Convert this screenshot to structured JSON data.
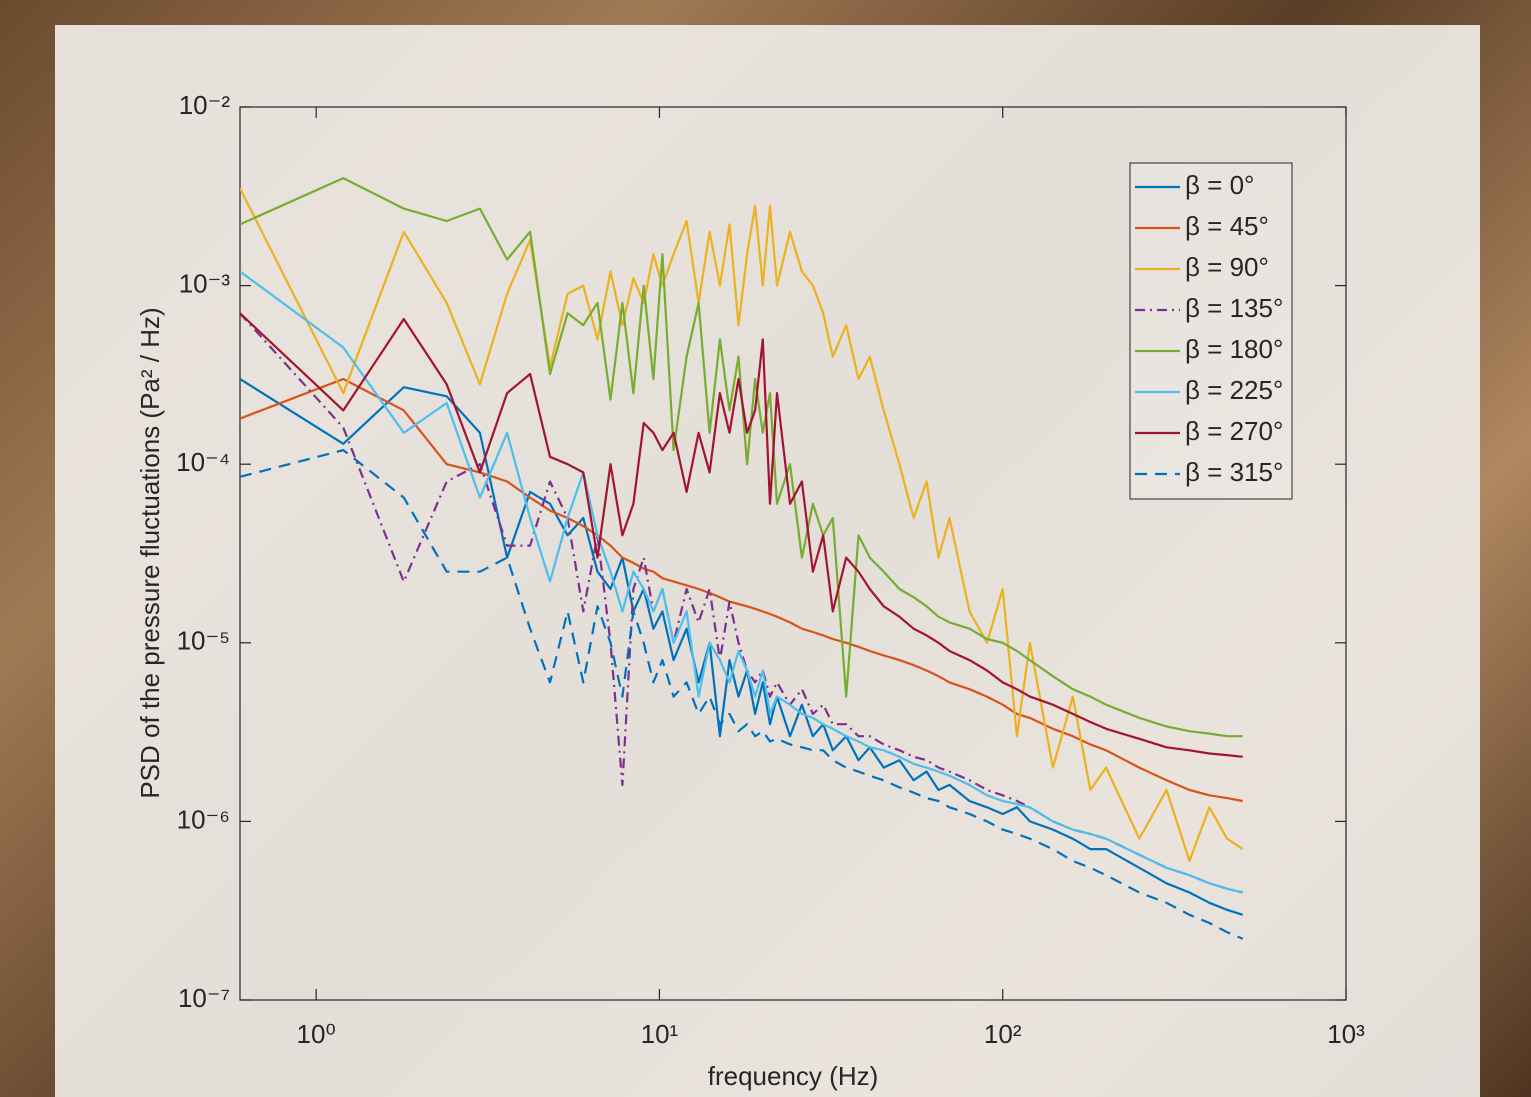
{
  "chart_data": {
    "type": "line",
    "xlabel": "frequency (Hz)",
    "ylabel": "PSD of the pressure fluctuations (Pa² / Hz)",
    "xscale": "log",
    "yscale": "log",
    "xlim": [
      0.6,
      1000
    ],
    "ylim": [
      1e-07,
      0.01
    ],
    "xticks": [
      {
        "value": 1,
        "label": "10⁰"
      },
      {
        "value": 10,
        "label": "10¹"
      },
      {
        "value": 100,
        "label": "10²"
      },
      {
        "value": 1000,
        "label": "10³"
      }
    ],
    "yticks": [
      {
        "value": 1e-07,
        "label": "10⁻⁷"
      },
      {
        "value": 1e-06,
        "label": "10⁻⁶"
      },
      {
        "value": 1e-05,
        "label": "10⁻⁵"
      },
      {
        "value": 0.0001,
        "label": "10⁻⁴"
      },
      {
        "value": 0.001,
        "label": "10⁻³"
      },
      {
        "value": 0.01,
        "label": "10⁻²"
      }
    ],
    "legend": "northeast",
    "x": [
      0.6,
      1.2,
      1.8,
      2.4,
      3.0,
      3.6,
      4.2,
      4.8,
      5.4,
      6.0,
      6.6,
      7.2,
      7.8,
      8.4,
      9.0,
      9.6,
      10.2,
      11,
      12,
      13,
      14,
      15,
      16,
      17,
      18,
      19,
      20,
      21,
      22,
      24,
      26,
      28,
      30,
      32,
      35,
      38,
      41,
      45,
      50,
      55,
      60,
      65,
      70,
      80,
      90,
      100,
      110,
      120,
      140,
      160,
      180,
      200,
      250,
      300,
      350,
      400,
      450,
      500
    ],
    "series": [
      {
        "name": "β = 0°",
        "color": "#0072bd",
        "line_style": "solid",
        "values": [
          0.0003,
          0.00013,
          0.00027,
          0.00024,
          0.00015,
          3e-05,
          7e-05,
          6e-05,
          4e-05,
          5e-05,
          2.5e-05,
          2e-05,
          3e-05,
          1.5e-05,
          2e-05,
          1.2e-05,
          1.5e-05,
          8e-06,
          1.2e-05,
          6e-06,
          1e-05,
          3e-06,
          8e-06,
          5e-06,
          7e-06,
          4e-06,
          6e-06,
          3.5e-06,
          5e-06,
          3e-06,
          4.5e-06,
          3e-06,
          3.5e-06,
          2.5e-06,
          3e-06,
          2.2e-06,
          2.6e-06,
          2e-06,
          2.2e-06,
          1.7e-06,
          1.9e-06,
          1.5e-06,
          1.6e-06,
          1.3e-06,
          1.2e-06,
          1.1e-06,
          1.2e-06,
          1e-06,
          9e-07,
          8e-07,
          7e-07,
          7e-07,
          5.5e-07,
          4.5e-07,
          4e-07,
          3.5e-07,
          3.2e-07,
          3e-07
        ]
      },
      {
        "name": "β = 45°",
        "color": "#d95319",
        "line_style": "solid",
        "values": [
          0.00018,
          0.0003,
          0.0002,
          0.0001,
          9e-05,
          8e-05,
          6.5e-05,
          5.5e-05,
          5e-05,
          4.5e-05,
          4e-05,
          3.5e-05,
          3e-05,
          2.8e-05,
          2.6e-05,
          2.5e-05,
          2.3e-05,
          2.2e-05,
          2.1e-05,
          2e-05,
          1.9e-05,
          1.8e-05,
          1.7e-05,
          1.65e-05,
          1.6e-05,
          1.55e-05,
          1.5e-05,
          1.45e-05,
          1.4e-05,
          1.3e-05,
          1.2e-05,
          1.15e-05,
          1.1e-05,
          1.05e-05,
          1e-05,
          9.5e-06,
          9e-06,
          8.5e-06,
          8e-06,
          7.5e-06,
          7e-06,
          6.5e-06,
          6e-06,
          5.5e-06,
          5e-06,
          4.5e-06,
          4e-06,
          3.8e-06,
          3.3e-06,
          3e-06,
          2.7e-06,
          2.5e-06,
          2e-06,
          1.7e-06,
          1.5e-06,
          1.4e-06,
          1.35e-06,
          1.3e-06
        ]
      },
      {
        "name": "β = 90°",
        "color": "#edb120",
        "line_style": "solid",
        "values": [
          0.0035,
          0.00025,
          0.002,
          0.0008,
          0.00028,
          0.0009,
          0.0018,
          0.00035,
          0.0009,
          0.001,
          0.0005,
          0.0012,
          0.0006,
          0.0011,
          0.0008,
          0.0015,
          0.001,
          0.0015,
          0.0023,
          0.0008,
          0.002,
          0.001,
          0.0022,
          0.0006,
          0.0015,
          0.0028,
          0.001,
          0.0028,
          0.001,
          0.002,
          0.0012,
          0.001,
          0.0007,
          0.0004,
          0.0006,
          0.0003,
          0.0004,
          0.0002,
          0.0001,
          5e-05,
          8e-05,
          3e-05,
          5e-05,
          1.5e-05,
          1e-05,
          2e-05,
          3e-06,
          1e-05,
          2e-06,
          5e-06,
          1.5e-06,
          2e-06,
          8e-07,
          1.5e-06,
          6e-07,
          1.2e-06,
          8e-07,
          7e-07
        ]
      },
      {
        "name": "β = 135°",
        "color": "#7e2f8e",
        "line_style": "dashdot",
        "values": [
          0.0007,
          0.00016,
          2.2e-05,
          8e-05,
          0.0001,
          3.5e-05,
          3.5e-05,
          8e-05,
          5e-05,
          1.5e-05,
          4e-05,
          1e-05,
          1.6e-06,
          2e-05,
          3e-05,
          1.5e-05,
          2e-05,
          1e-05,
          2e-05,
          1.3e-05,
          2e-05,
          8e-06,
          1.7e-05,
          1e-05,
          7e-06,
          6e-06,
          7e-06,
          5e-06,
          6e-06,
          4.5e-06,
          5.5e-06,
          4e-06,
          4.5e-06,
          3.5e-06,
          3.5e-06,
          3e-06,
          3e-06,
          2.7e-06,
          2.5e-06,
          2.3e-06,
          2.2e-06,
          2e-06,
          1.9e-06,
          1.7e-06,
          1.5e-06,
          1.4e-06,
          1.3e-06,
          1.2e-06,
          1e-06,
          9e-07,
          8.5e-07,
          8e-07,
          6.5e-07,
          5.5e-07,
          5e-07,
          4.5e-07,
          4.2e-07,
          4e-07
        ]
      },
      {
        "name": "β = 180°",
        "color": "#77ac30",
        "line_style": "solid",
        "values": [
          0.0022,
          0.004,
          0.0027,
          0.0023,
          0.0027,
          0.0014,
          0.002,
          0.00032,
          0.0007,
          0.0006,
          0.0008,
          0.00023,
          0.0008,
          0.00025,
          0.001,
          0.0003,
          0.0015,
          0.00012,
          0.0004,
          0.0008,
          0.00015,
          0.0005,
          0.0002,
          0.0004,
          0.0001,
          0.0003,
          0.00015,
          0.00025,
          6e-05,
          0.0001,
          3e-05,
          6e-05,
          4e-05,
          5e-05,
          5e-06,
          4e-05,
          3e-05,
          2.5e-05,
          2e-05,
          1.8e-05,
          1.6e-05,
          1.4e-05,
          1.3e-05,
          1.2e-05,
          1.05e-05,
          1e-05,
          9e-06,
          8e-06,
          6.5e-06,
          5.5e-06,
          5e-06,
          4.5e-06,
          3.8e-06,
          3.4e-06,
          3.2e-06,
          3.1e-06,
          3e-06,
          3e-06
        ]
      },
      {
        "name": "β = 225°",
        "color": "#4dbeee",
        "line_style": "solid",
        "values": [
          0.0012,
          0.00045,
          0.00015,
          0.00022,
          6.5e-05,
          0.00015,
          5e-05,
          2.2e-05,
          5e-05,
          9e-05,
          4e-05,
          2.5e-05,
          1.5e-05,
          2.5e-05,
          2e-05,
          1.5e-05,
          2e-05,
          1e-05,
          1.5e-05,
          5e-06,
          1e-05,
          8e-06,
          6e-06,
          9e-06,
          7e-06,
          5e-06,
          7e-06,
          4e-06,
          5e-06,
          4.5e-06,
          4e-06,
          3.8e-06,
          3.5e-06,
          3.3e-06,
          3e-06,
          2.8e-06,
          2.6e-06,
          2.5e-06,
          2.3e-06,
          2.1e-06,
          2e-06,
          1.9e-06,
          1.8e-06,
          1.6e-06,
          1.4e-06,
          1.3e-06,
          1.25e-06,
          1.2e-06,
          1e-06,
          9e-07,
          8.5e-07,
          8e-07,
          6.5e-07,
          5.5e-07,
          5e-07,
          4.5e-07,
          4.2e-07,
          4e-07
        ]
      },
      {
        "name": "β = 270°",
        "color": "#a2142f",
        "line_style": "solid",
        "values": [
          0.0007,
          0.0002,
          0.00065,
          0.00028,
          9e-05,
          0.00025,
          0.00032,
          0.00011,
          0.0001,
          9e-05,
          3e-05,
          0.0001,
          4e-05,
          6e-05,
          0.00017,
          0.00015,
          0.00012,
          0.00015,
          7e-05,
          0.00015,
          9e-05,
          0.00025,
          0.00015,
          0.0003,
          0.00015,
          0.0002,
          0.0005,
          6e-05,
          0.00025,
          6e-05,
          8e-05,
          2.5e-05,
          4e-05,
          1.5e-05,
          3e-05,
          2.5e-05,
          2e-05,
          1.6e-05,
          1.4e-05,
          1.2e-05,
          1.1e-05,
          1e-05,
          9e-06,
          8e-06,
          7e-06,
          6e-06,
          5.5e-06,
          5e-06,
          4.5e-06,
          4e-06,
          3.6e-06,
          3.3e-06,
          2.9e-06,
          2.6e-06,
          2.5e-06,
          2.4e-06,
          2.35e-06,
          2.3e-06
        ]
      },
      {
        "name": "β = 315°",
        "color": "#0072bd",
        "line_style": "dashed",
        "values": [
          8.5e-05,
          0.00012,
          6.5e-05,
          2.5e-05,
          2.5e-05,
          3e-05,
          1.2e-05,
          6e-06,
          1.5e-05,
          6e-06,
          1.6e-05,
          1e-05,
          5e-06,
          1.5e-05,
          1e-05,
          6e-06,
          8e-06,
          5e-06,
          6e-06,
          4e-06,
          5e-06,
          3.5e-06,
          4e-06,
          3.2e-06,
          3.5e-06,
          3e-06,
          3.2e-06,
          2.8e-06,
          2.9e-06,
          2.7e-06,
          2.6e-06,
          2.5e-06,
          2.5e-06,
          2.2e-06,
          2e-06,
          1.9e-06,
          1.8e-06,
          1.7e-06,
          1.55e-06,
          1.45e-06,
          1.35e-06,
          1.3e-06,
          1.2e-06,
          1.1e-06,
          1e-06,
          9e-07,
          8.5e-07,
          8e-07,
          7e-07,
          6e-07,
          5.5e-07,
          5e-07,
          4e-07,
          3.5e-07,
          3e-07,
          2.7e-07,
          2.4e-07,
          2.2e-07
        ]
      }
    ]
  }
}
